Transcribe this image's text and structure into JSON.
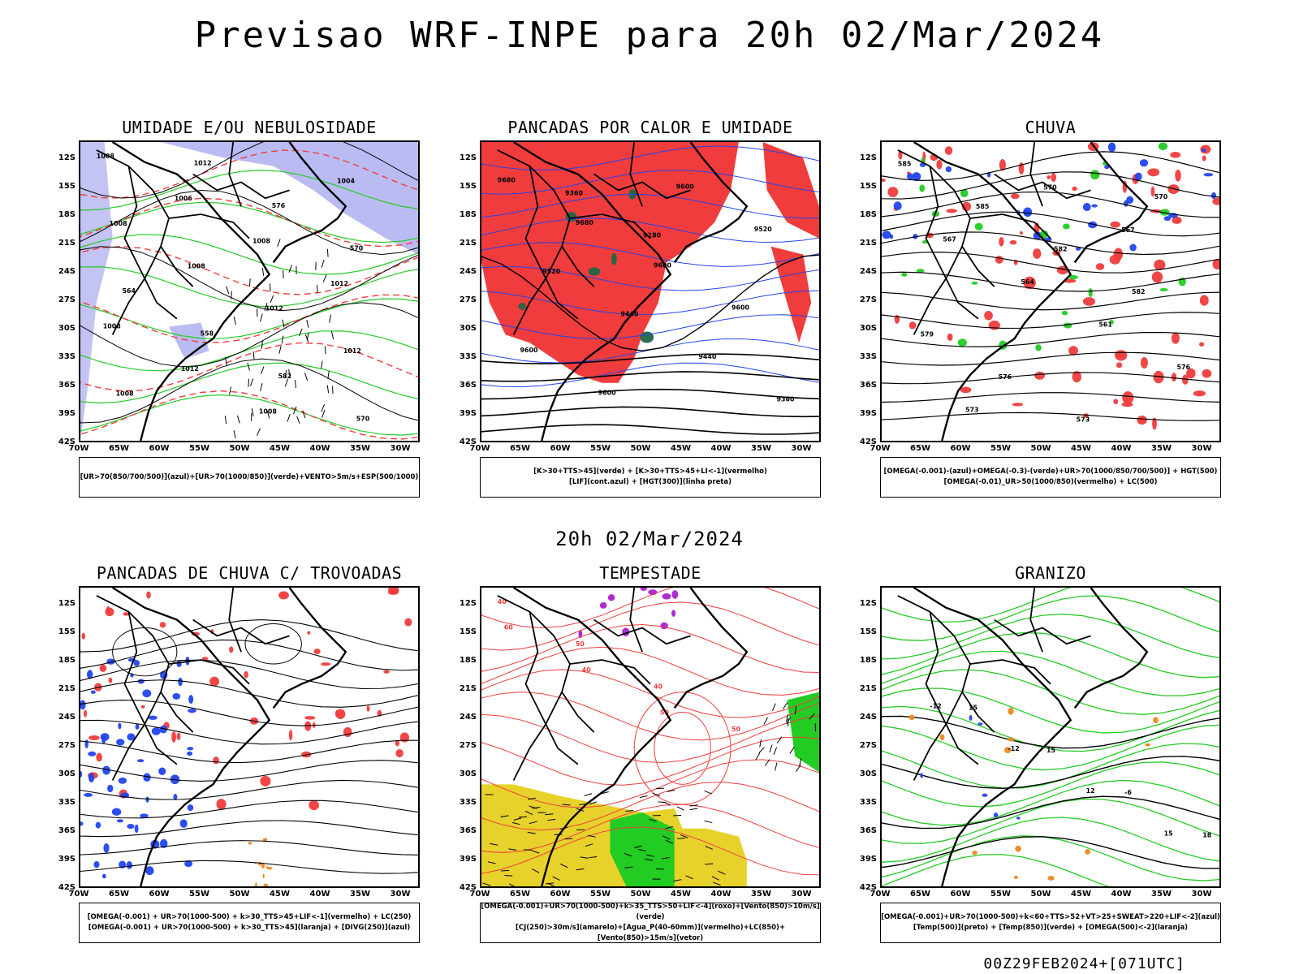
{
  "header": {
    "title": "Previsao WRF-INPE  para 20h 02/Mar/2024"
  },
  "mid_title": "20h 02/Mar/2024",
  "footer": "00Z29FEB2024+[071UTC]",
  "axes": {
    "lat": [
      "12S",
      "15S",
      "18S",
      "21S",
      "24S",
      "27S",
      "30S",
      "33S",
      "36S",
      "39S",
      "42S"
    ],
    "lon": [
      "70W",
      "65W",
      "60W",
      "55W",
      "50W",
      "45W",
      "40W",
      "35W",
      "30W"
    ]
  },
  "colors": {
    "red": "#f03c3c",
    "green": "#22cc22",
    "blue": "#2244ee",
    "lavender": "#aaaaf0",
    "yellow": "#e6d22a",
    "orange": "#ee8822",
    "purple": "#aa22cc",
    "darkgreen": "#226644"
  },
  "panels": [
    {
      "id": "umidade",
      "title": "UMIDADE E/OU NEBULOSIDADE",
      "legend": [
        "[UR>70(850/700/500)](azul)+[UR>70(1000/850)](verde)+VENTO>5m/s+ESP(500/1000)"
      ],
      "contour_labels": [
        "1008",
        "1006",
        "1008",
        "1012",
        "1008",
        "1012",
        "1008",
        "1004",
        "1008",
        "1008",
        "1012",
        "1012",
        "1008",
        "1012",
        "576",
        "570",
        "564",
        "558",
        "582",
        "570"
      ]
    },
    {
      "id": "pancadas_calor",
      "title": "PANCADAS POR CALOR E UMIDADE",
      "legend": [
        "[K>30+TTS>45](verde) + [K>30+TTS>45+LI<-1](vermelho)",
        "[LIF](cont.azul) + [HGT(300)](linha preta)"
      ],
      "contour_labels": [
        "9680",
        "9680",
        "9600",
        "9600",
        "9600",
        "9600",
        "9600",
        "9520",
        "9520",
        "9440",
        "9440",
        "9360",
        "9360",
        "9280"
      ]
    },
    {
      "id": "chuva",
      "title": "CHUVA",
      "legend": [
        "[OMEGA(-0.001)-(azul)+OMEGA(-0.3)-(verde)+UR>70(1000/850/700/500)] + HGT(500)",
        "[OMEGA(-0.01)_UR>50(1000/850)(vermelho) + LC(500)"
      ],
      "contour_labels": [
        "585",
        "585",
        "582",
        "582",
        "579",
        "576",
        "573",
        "570",
        "567",
        "564",
        "561",
        "576",
        "573",
        "570",
        "567"
      ]
    },
    {
      "id": "trovoadas",
      "title": "PANCADAS DE CHUVA C/ TROVOADAS",
      "legend": [
        "[OMEGA(-0.001) + UR>70(1000-500) + k>30_TTS>45+LIF<-1](vermelho) + LC(250)",
        "[OMEGA(-0.001) + UR>70(1000-500) + k>30_TTS>45](laranja) + [DIVG(250)](azul)"
      ],
      "contour_labels": []
    },
    {
      "id": "tempestade",
      "title": "TEMPESTADE",
      "legend": [
        "[OMEGA(-0.001)+UR>70(1000-500)+k>35_TTS>50+LIF<-4](roxo)+[Vento(850)>10m/s](verde)",
        "[CJ(250)>30m/s](amarelo)+[Agua_P(40-60mm)](vermelho)+LC(850)+[Vento(850)>15m/s](vetor)"
      ],
      "contour_labels": [
        "40",
        "50",
        "40",
        "50",
        "60",
        "40",
        "50"
      ]
    },
    {
      "id": "granizo",
      "title": "GRANIZO",
      "legend": [
        "[OMEGA(-0.001)+UR>70(1000-500)+k<60+TTS>52+VT>25+SWEAT>220+LIF<-2](azul)",
        "[Temp(500)](preto) + [Temp(850)](verde) + [OMEGA(500)<-2](laranja)"
      ],
      "contour_labels": [
        "-12",
        "-12",
        "12",
        "15",
        "15",
        "15",
        "-6",
        "18"
      ]
    }
  ]
}
